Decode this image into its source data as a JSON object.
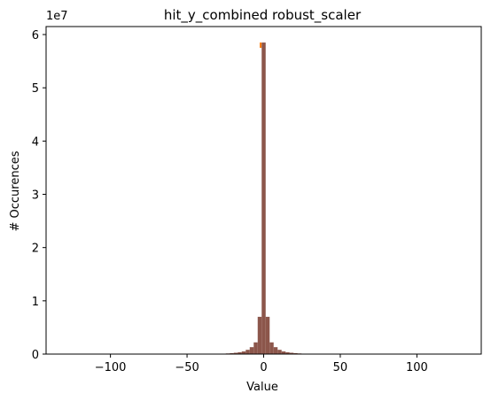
{
  "chart_data": {
    "type": "bar",
    "title": "hit_y_combined robust_scaler",
    "xlabel": "Value",
    "ylabel": "# Occurences",
    "y_offset_label": "1e7",
    "xlim": [
      -142,
      142
    ],
    "ylim": [
      0,
      61500000
    ],
    "xticks": [
      -100,
      -50,
      0,
      50,
      100
    ],
    "xtick_labels": [
      "−100",
      "−50",
      "0",
      "50",
      "100"
    ],
    "yticks": [
      0,
      10000000,
      20000000,
      30000000,
      40000000,
      50000000,
      60000000
    ],
    "ytick_labels": [
      "0",
      "1",
      "2",
      "3",
      "4",
      "5",
      "6"
    ],
    "grid": false,
    "bar_color": "#8c564b",
    "accent_color": "#ff7f0e",
    "bin_width": 2.6,
    "bins": [
      {
        "x": -26.0,
        "value": 80000
      },
      {
        "x": -23.4,
        "value": 120000
      },
      {
        "x": -20.8,
        "value": 180000
      },
      {
        "x": -18.2,
        "value": 250000
      },
      {
        "x": -15.6,
        "value": 350000
      },
      {
        "x": -13.0,
        "value": 500000
      },
      {
        "x": -10.4,
        "value": 800000
      },
      {
        "x": -7.8,
        "value": 1300000
      },
      {
        "x": -5.2,
        "value": 2200000
      },
      {
        "x": -2.6,
        "value": 7000000
      },
      {
        "x": 0.0,
        "value": 58500000
      },
      {
        "x": 2.6,
        "value": 7000000
      },
      {
        "x": 5.2,
        "value": 2200000
      },
      {
        "x": 7.8,
        "value": 1300000
      },
      {
        "x": 10.4,
        "value": 800000
      },
      {
        "x": 13.0,
        "value": 500000
      },
      {
        "x": 15.6,
        "value": 350000
      },
      {
        "x": 18.2,
        "value": 250000
      },
      {
        "x": 20.8,
        "value": 180000
      },
      {
        "x": 23.4,
        "value": 120000
      },
      {
        "x": 26.0,
        "value": 80000
      }
    ],
    "overlay_bins": [
      {
        "x": -1.3,
        "value": 58500000
      }
    ]
  }
}
